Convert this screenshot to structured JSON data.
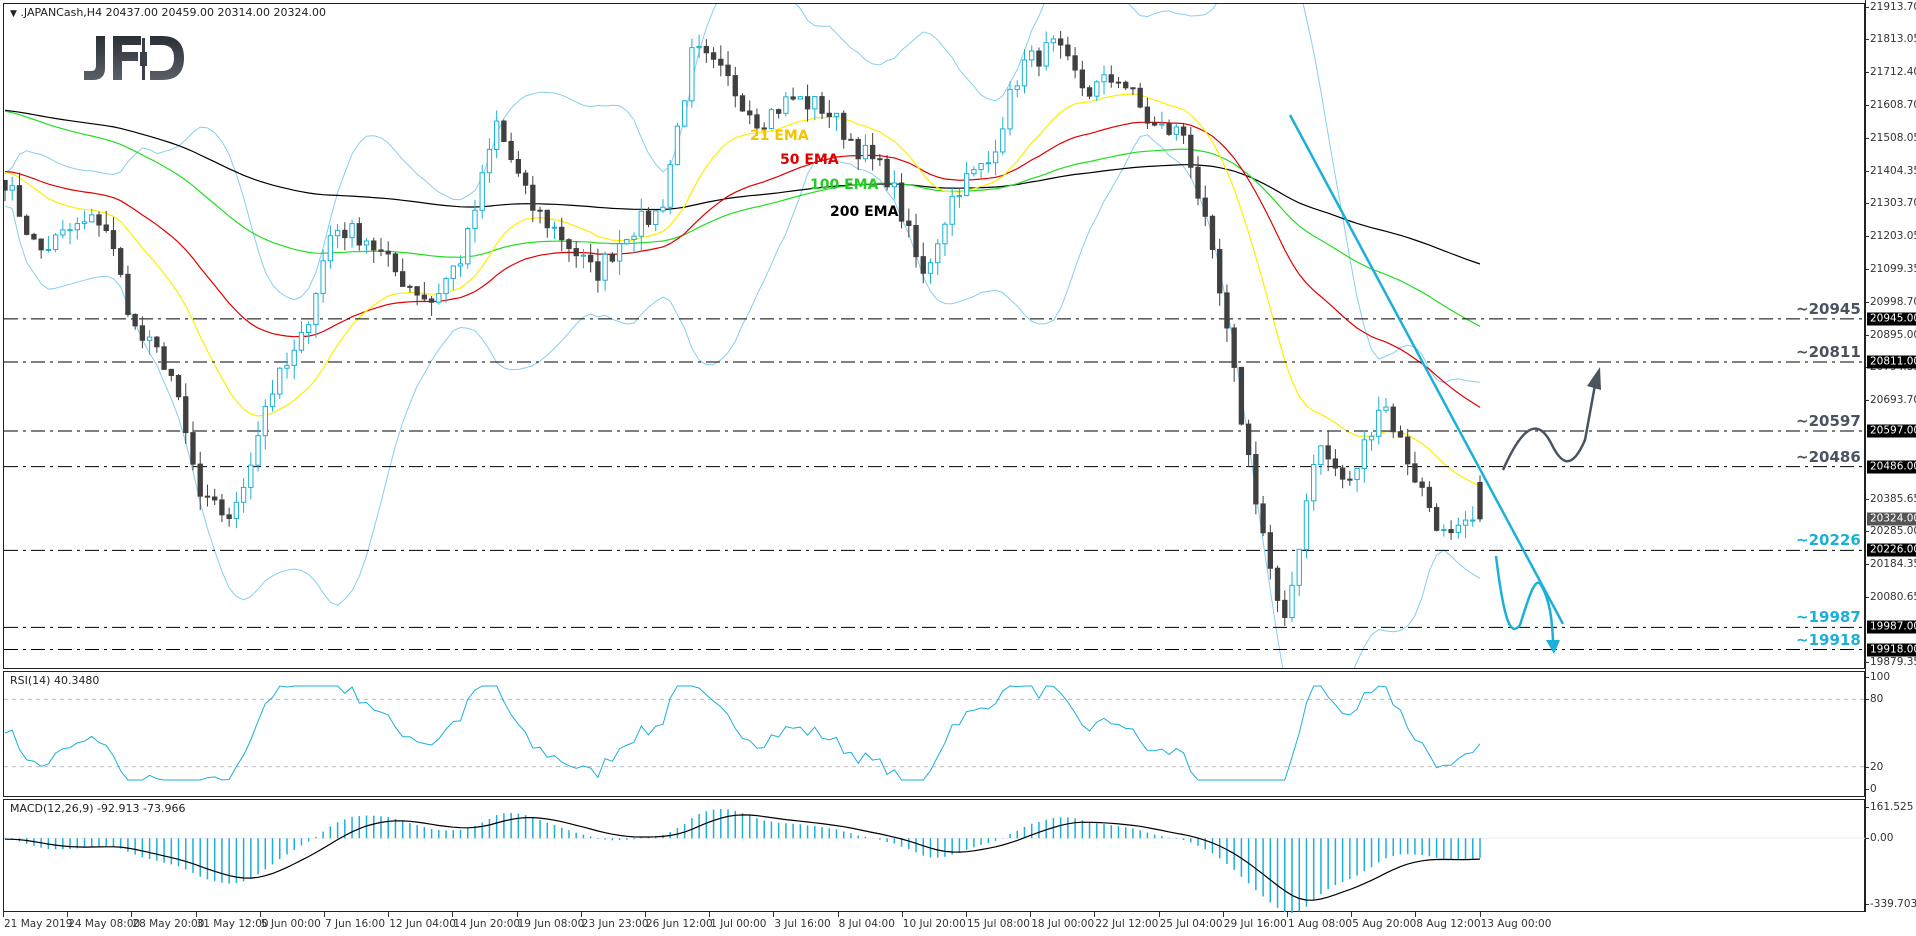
{
  "header": {
    "symbol_line": ".JAPANCash,H4  20437.00 20459.00 20314.00 20324.00",
    "symbol": ".JAPANCash",
    "timeframe": "H4",
    "open": "20437.00",
    "high": "20459.00",
    "low": "20314.00",
    "close": "20324.00"
  },
  "logo": {
    "text": "JFD"
  },
  "rsi": {
    "label": "RSI(14) 40.3480",
    "ticks": [
      "100",
      "80",
      "20",
      "0"
    ]
  },
  "macd": {
    "label": "MACD(12,26,9) -92.913 -73.966",
    "ticks": [
      "161.525",
      "0.00",
      "-339.703"
    ]
  },
  "ema_labels": [
    {
      "text": "21 EMA",
      "color": "#f5c400"
    },
    {
      "text": "50 EMA",
      "color": "#e00000"
    },
    {
      "text": "100 EMA",
      "color": "#22cc22"
    },
    {
      "text": "200 EMA",
      "color": "#000000"
    }
  ],
  "price_ticks": [
    "21913.70",
    "21813.05",
    "21712.40",
    "21608.70",
    "21508.05",
    "21404.35",
    "21303.70",
    "21203.05",
    "21099.35",
    "20998.70",
    "20895.00",
    "20794.35",
    "20693.70",
    "20385.65",
    "20285.00",
    "20184.35",
    "20080.65",
    "19879.35"
  ],
  "level_badges": [
    "20945.00",
    "20811.00",
    "20597.00",
    "20486.00",
    "20226.00",
    "19987.00",
    "19918.00"
  ],
  "current_price_badge": "20324.00",
  "level_labels": [
    {
      "text": "~20945",
      "value": 20945,
      "color": "#4a5460"
    },
    {
      "text": "~20811",
      "value": 20811,
      "color": "#4a5460"
    },
    {
      "text": "~20597",
      "value": 20597,
      "color": "#4a5460"
    },
    {
      "text": "~20486",
      "value": 20486,
      "color": "#4a5460"
    },
    {
      "text": "~20226",
      "value": 20226,
      "color": "#1ab0d8"
    },
    {
      "text": "~19987",
      "value": 19987,
      "color": "#1ab0d8"
    },
    {
      "text": "~19918",
      "value": 19918,
      "color": "#1ab0d8"
    }
  ],
  "time_labels": [
    "21 May 2019",
    "24 May 08:00",
    "28 May 20:00",
    "31 May 12:00",
    "5 Jun 00:00",
    "7 Jun 16:00",
    "12 Jun 04:00",
    "14 Jun 20:00",
    "19 Jun 08:00",
    "23 Jun 23:00",
    "26 Jun 12:00",
    "1 Jul 00:00",
    "3 Jul 16:00",
    "8 Jul 04:00",
    "10 Jul 20:00",
    "15 Jul 08:00",
    "18 Jul 00:00",
    "22 Jul 12:00",
    "25 Jul 04:00",
    "29 Jul 16:00",
    "1 Aug 08:00",
    "5 Aug 20:00",
    "8 Aug 12:00",
    "13 Aug 00:00"
  ],
  "colors": {
    "bull": "#1ab0d8",
    "bear": "#404040",
    "bands": "#87cef0",
    "ema21": "#ffee00",
    "ema50": "#e00000",
    "ema100": "#22dd22",
    "ema200": "#000000",
    "trendline": "#1ab0d8",
    "bull_scenario": "#4a5460",
    "bear_scenario": "#1ab0d8"
  },
  "chart_data": {
    "type": "candlestick",
    "title": ".JAPANCash,H4",
    "xlabel": "",
    "ylabel": "",
    "ylim": [
      19879.35,
      21913.7
    ],
    "ohlc_last": {
      "open": 20437.0,
      "high": 20459.0,
      "low": 20314.0,
      "close": 20324.0
    },
    "close_waypoints": [
      {
        "t": "21 May 2019",
        "price": 21380
      },
      {
        "t": "22 May",
        "price": 21150
      },
      {
        "t": "24 May 08:00",
        "price": 21220
      },
      {
        "t": "25 May",
        "price": 21260
      },
      {
        "t": "28 May 20:00",
        "price": 20900
      },
      {
        "t": "30 May",
        "price": 20800
      },
      {
        "t": "31 May 12:00",
        "price": 20370
      },
      {
        "t": "3 Jun",
        "price": 20330
      },
      {
        "t": "5 Jun 00:00",
        "price": 20700
      },
      {
        "t": "6 Jun",
        "price": 20860
      },
      {
        "t": "7 Jun 16:00",
        "price": 21230
      },
      {
        "t": "11 Jun",
        "price": 21200
      },
      {
        "t": "12 Jun 04:00",
        "price": 21080
      },
      {
        "t": "14 Jun 20:00",
        "price": 21000
      },
      {
        "t": "17 Jun",
        "price": 21150
      },
      {
        "t": "19 Jun 08:00",
        "price": 21550
      },
      {
        "t": "20 Jun",
        "price": 21300
      },
      {
        "t": "23 Jun 23:00",
        "price": 21200
      },
      {
        "t": "25 Jun",
        "price": 21080
      },
      {
        "t": "26 Jun 12:00",
        "price": 21220
      },
      {
        "t": "28 Jun",
        "price": 21280
      },
      {
        "t": "1 Jul 00:00",
        "price": 21780
      },
      {
        "t": "3 Jul 16:00",
        "price": 21690
      },
      {
        "t": "8 Jul 04:00",
        "price": 21560
      },
      {
        "t": "10 Jul 20:00",
        "price": 21630
      },
      {
        "t": "12 Jul",
        "price": 21600
      },
      {
        "t": "15 Jul 08:00",
        "price": 21480
      },
      {
        "t": "17 Jul",
        "price": 21380
      },
      {
        "t": "18 Jul 00:00",
        "price": 21070
      },
      {
        "t": "19 Jul",
        "price": 21350
      },
      {
        "t": "22 Jul 12:00",
        "price": 21430
      },
      {
        "t": "24 Jul",
        "price": 21730
      },
      {
        "t": "25 Jul 04:00",
        "price": 21790
      },
      {
        "t": "26 Jul",
        "price": 21650
      },
      {
        "t": "29 Jul 16:00",
        "price": 21700
      },
      {
        "t": "30 Jul",
        "price": 21540
      },
      {
        "t": "1 Aug 08:00",
        "price": 21520
      },
      {
        "t": "2 Aug",
        "price": 21050
      },
      {
        "t": "5 Aug",
        "price": 20480
      },
      {
        "t": "5 Aug 20:00",
        "price": 19960
      },
      {
        "t": "6 Aug",
        "price": 20560
      },
      {
        "t": "7 Aug",
        "price": 20420
      },
      {
        "t": "8 Aug 12:00",
        "price": 20700
      },
      {
        "t": "9 Aug",
        "price": 20460
      },
      {
        "t": "12 Aug",
        "price": 20250
      },
      {
        "t": "13 Aug 00:00",
        "price": 20324
      }
    ],
    "indicators": {
      "ema": [
        21,
        50,
        100,
        200
      ],
      "bollinger_bands": true,
      "rsi": {
        "period": 14,
        "value": 40.348,
        "levels": [
          20,
          80
        ],
        "range": [
          0,
          100
        ]
      },
      "macd": {
        "params": [
          12,
          26,
          9
        ],
        "main": -92.913,
        "signal": -73.966,
        "range": [
          -339.703,
          161.525
        ]
      }
    },
    "horizontal_levels": [
      20945,
      20811,
      20597,
      20486,
      20226,
      19987,
      19918
    ],
    "annotations": [
      "downtrend line from ~21580 (1 Aug) to ~20000",
      "bullish scenario arrow toward 20811",
      "bearish scenario arrow toward 19918"
    ]
  }
}
